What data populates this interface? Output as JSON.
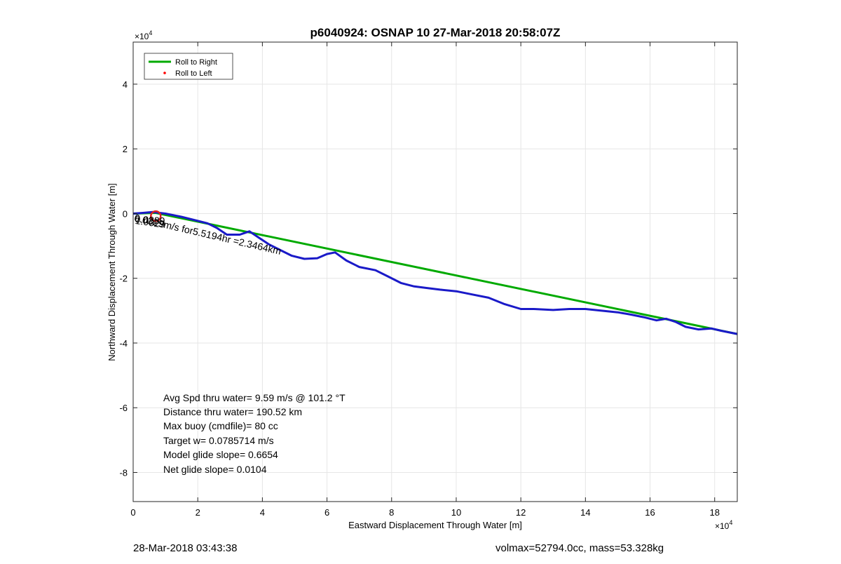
{
  "chart_data": {
    "type": "line",
    "title": "p6040924: OSNAP 10 27-Mar-2018 20:58:07Z",
    "xlabel": "Eastward Displacement Through Water [m]",
    "ylabel": "Northward Displacement Through Water [m]",
    "x_exponent_label": "×10",
    "x_exponent": "4",
    "y_exponent_label": "×10",
    "y_exponent": "4",
    "xlim": [
      0,
      18.7
    ],
    "ylim": [
      -8.9,
      5.3
    ],
    "xticks": [
      0,
      2,
      4,
      6,
      8,
      10,
      12,
      14,
      16,
      18
    ],
    "yticks": [
      -8,
      -6,
      -4,
      -2,
      0,
      2,
      4
    ],
    "grid": true,
    "legend_position": "top-left",
    "legend": [
      {
        "label": "Roll to Right",
        "color": "#00aa00",
        "style": "line"
      },
      {
        "label": "Roll to Left",
        "color": "#ff0000",
        "style": "dot"
      }
    ],
    "series": [
      {
        "color": "#00aa00",
        "x": [
          0,
          0.7,
          18.7
        ],
        "y": [
          0,
          0.02,
          -3.72
        ]
      },
      {
        "color": "#1a1ac8",
        "x": [
          0,
          0.3,
          0.6,
          1.0,
          1.5,
          1.9,
          2.3,
          2.6,
          2.9,
          3.3,
          3.6,
          3.9,
          4.2,
          4.6,
          4.9,
          5.3,
          5.7,
          6.0,
          6.25,
          6.6,
          7.0,
          7.5,
          7.9,
          8.3,
          8.7,
          9.1,
          9.5,
          10.0,
          10.5,
          11.0,
          11.5,
          12.0,
          12.4,
          13.0,
          13.5,
          14.0,
          14.5,
          15.0,
          15.4,
          15.8,
          16.2,
          16.5,
          16.8,
          17.1,
          17.5,
          17.9,
          18.2,
          18.7
        ],
        "y": [
          0,
          0.02,
          0.05,
          0.0,
          -0.1,
          -0.2,
          -0.3,
          -0.45,
          -0.65,
          -0.65,
          -0.55,
          -0.75,
          -0.95,
          -1.15,
          -1.3,
          -1.4,
          -1.38,
          -1.25,
          -1.2,
          -1.45,
          -1.65,
          -1.75,
          -1.95,
          -2.15,
          -2.25,
          -2.3,
          -2.35,
          -2.4,
          -2.5,
          -2.6,
          -2.8,
          -2.95,
          -2.95,
          -2.98,
          -2.95,
          -2.95,
          -3.0,
          -3.05,
          -3.12,
          -3.2,
          -3.3,
          -3.25,
          -3.35,
          -3.5,
          -3.58,
          -3.55,
          -3.62,
          -3.72
        ]
      }
    ],
    "marker": {
      "x": 0.7,
      "y": -0.08,
      "color": "#dd2222"
    },
    "plot_annotations": [
      {
        "text": "0.0329m/s for5.5194hr =2.3464km",
        "x": 0.02,
        "y": -0.05,
        "angle": 13
      },
      {
        "text": "1.0029",
        "x": 0.05,
        "y": -0.14,
        "angle": 8
      },
      {
        "text": "0.0889",
        "x": 0.05,
        "y": -0.1,
        "angle": 4
      }
    ],
    "stats": [
      "Avg Spd thru water=  9.59 m/s @ 101.2 °T",
      "Distance thru water= 190.52 km",
      "Max buoy (cmdfile)= 80 cc",
      "Target w= 0.0785714 m/s",
      "Model glide slope= 0.6654",
      "Net glide slope= 0.0104"
    ]
  },
  "footer": {
    "left": "28-Mar-2018 03:43:38",
    "right": "volmax=52794.0cc, mass=53.328kg"
  }
}
